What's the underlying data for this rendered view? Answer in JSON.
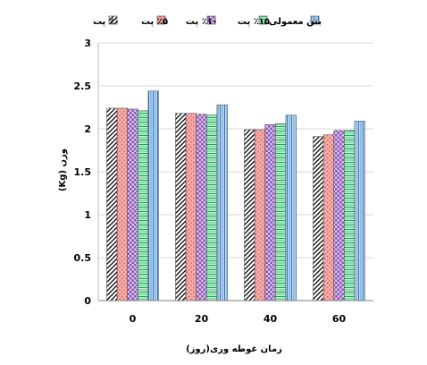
{
  "chart_data": {
    "type": "bar",
    "categories": [
      "0",
      "20",
      "40",
      "60"
    ],
    "series": [
      {
        "name": "٪۰ پت",
        "values": [
          2.24,
          2.18,
          1.99,
          1.91
        ],
        "color": "#ffffff",
        "pattern": "diagonal-lines",
        "pattern_color": "#000000"
      },
      {
        "name": "٪۵ پت",
        "values": [
          2.24,
          2.18,
          1.99,
          1.93
        ],
        "color": "#f4a9a6",
        "pattern": "dots",
        "pattern_color": "#c0504d"
      },
      {
        "name": "٪۱۰ پت",
        "values": [
          2.23,
          2.17,
          2.05,
          1.98
        ],
        "color": "#d9c2ec",
        "pattern": "checker",
        "pattern_color": "#7030a0"
      },
      {
        "name": "٪۱۵ پت",
        "values": [
          2.21,
          2.16,
          2.06,
          1.98
        ],
        "color": "#c6ecd1",
        "pattern": "horizontal-lines",
        "pattern_color": "#00b050"
      },
      {
        "name": "بتن معمولی",
        "values": [
          2.44,
          2.28,
          2.16,
          2.09
        ],
        "color": "#bcd9f5",
        "pattern": "vertical-lines",
        "pattern_color": "#2e75b6"
      }
    ],
    "ylim": [
      0,
      3
    ],
    "yticks": [
      "0",
      "0.5",
      "1",
      "1.5",
      "2",
      "2.5",
      "3"
    ],
    "xlabel": "زمان غوطه وری(روز)",
    "ylabel": "(Kg) وزن",
    "grid": true,
    "legend_position": "top"
  }
}
